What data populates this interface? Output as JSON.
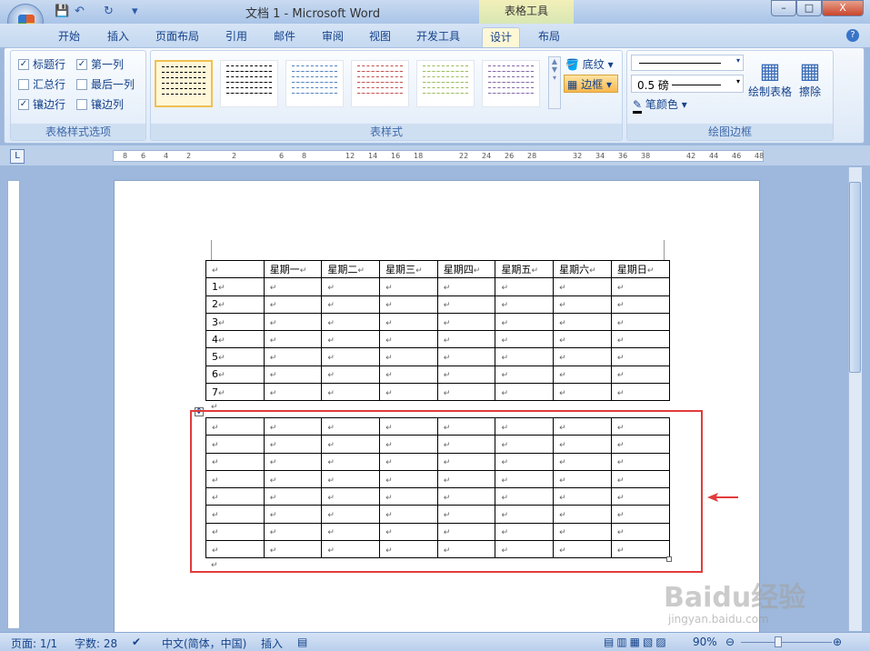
{
  "window": {
    "title": "文档 1 - Microsoft Word",
    "context_tab": "表格工具",
    "minimize": "–",
    "maximize": "□",
    "close": "X"
  },
  "quick_access": {
    "save": "💾",
    "undo": "↶",
    "redo": "↻",
    "more": "▾"
  },
  "tabs": [
    "开始",
    "插入",
    "页面布局",
    "引用",
    "邮件",
    "审阅",
    "视图",
    "开发工具",
    "设计",
    "布局"
  ],
  "active_tab": "设计",
  "help": "?",
  "ribbon": {
    "style_options": {
      "label": "表格样式选项",
      "items": [
        {
          "label": "标题行",
          "checked": true
        },
        {
          "label": "第一列",
          "checked": true
        },
        {
          "label": "汇总行",
          "checked": false
        },
        {
          "label": "最后一列",
          "checked": false
        },
        {
          "label": "镶边行",
          "checked": true
        },
        {
          "label": "镶边列",
          "checked": false
        }
      ]
    },
    "table_styles": {
      "label": "表样式",
      "shading": "底纹",
      "borders": "边框",
      "colors": [
        "#000000",
        "#000000",
        "#4f81bd",
        "#c0504d",
        "#9bbb59",
        "#8064a2"
      ]
    },
    "draw_borders": {
      "label": "绘图边框",
      "weight": "0.5 磅",
      "pen_color": "笔颜色",
      "draw_table": "绘制表格",
      "eraser": "擦除"
    }
  },
  "ruler": {
    "ticks": [
      "8",
      "6",
      "4",
      "2",
      "2",
      "6",
      "8",
      "12",
      "14",
      "16",
      "18",
      "22",
      "24",
      "26",
      "28",
      "32",
      "34",
      "36",
      "38",
      "42",
      "44",
      "46",
      "48"
    ]
  },
  "document": {
    "table1": {
      "header": [
        "",
        "星期一",
        "星期二",
        "星期三",
        "星期四",
        "星期五",
        "星期六",
        "星期日"
      ],
      "rows": [
        "1",
        "2",
        "3",
        "4",
        "5",
        "6",
        "7"
      ]
    },
    "table2": {
      "rows": 8,
      "cols": 8
    },
    "para_mark": "↵",
    "highlight_color": "#e23b3b"
  },
  "status": {
    "page": "页面: 1/1",
    "words": "字数: 28",
    "language": "中文(简体，中国)",
    "mode": "插入",
    "zoom": "90%"
  },
  "watermark": {
    "text": "Baidu经验",
    "url": "jingyan.baidu.com"
  }
}
